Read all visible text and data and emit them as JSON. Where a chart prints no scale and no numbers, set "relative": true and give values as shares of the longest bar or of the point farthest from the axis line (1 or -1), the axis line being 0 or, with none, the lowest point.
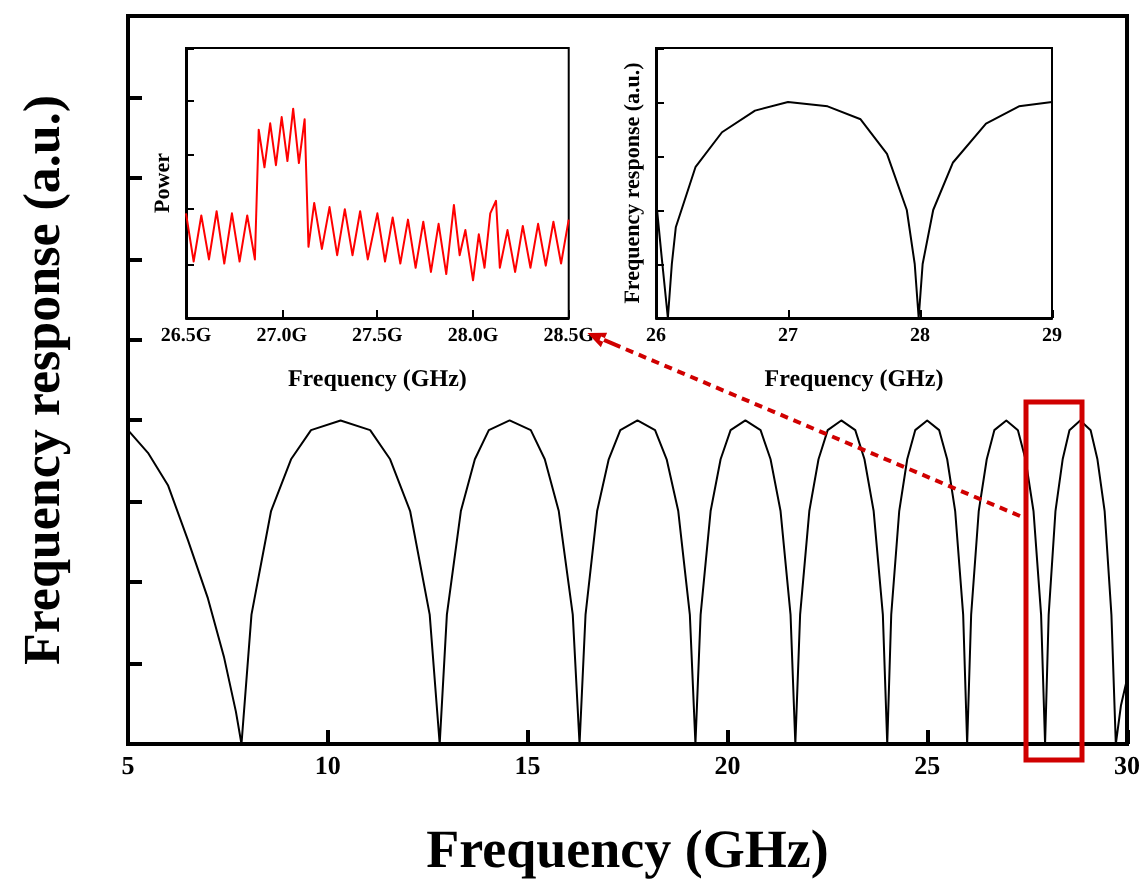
{
  "chart_data": [
    {
      "type": "line",
      "xlabel": "Frequency (GHz)",
      "ylabel": "Frequency response (a.u.)",
      "relative": true,
      "xlim": [
        5,
        30
      ],
      "xticks": [
        5,
        10,
        15,
        20,
        25,
        30
      ],
      "tick_labels": "x",
      "grid": false,
      "marker": "none",
      "line_style": "solid",
      "series": [
        {
          "color": "#000000",
          "x": [
            5,
            5.5,
            6,
            6.5,
            7,
            7.4,
            7.7,
            7.84,
            8.09,
            8.58,
            9.08,
            9.58,
            10.32,
            11.06,
            11.56,
            12.06,
            12.55,
            12.8,
            12.98,
            13.33,
            13.68,
            14.03,
            14.55,
            15.08,
            15.43,
            15.78,
            16.13,
            16.3,
            16.45,
            16.74,
            17.03,
            17.32,
            17.75,
            18.19,
            18.48,
            18.77,
            19.06,
            19.2,
            19.33,
            19.58,
            19.83,
            20.08,
            20.45,
            20.83,
            21.08,
            21.33,
            21.58,
            21.7,
            21.82,
            22.05,
            22.28,
            22.51,
            22.85,
            23.2,
            23.43,
            23.66,
            23.89,
            24.0,
            24.1,
            24.3,
            24.5,
            24.7,
            25,
            25.3,
            25.5,
            25.7,
            25.9,
            26.0,
            26.1,
            26.29,
            26.49,
            26.68,
            26.98,
            27.27,
            27.46,
            27.66,
            27.85,
            27.95,
            28.04,
            28.21,
            28.39,
            28.56,
            28.83,
            29.09,
            29.26,
            29.44,
            29.61,
            29.72,
            29.85,
            30
          ],
          "values": [
            0.97,
            0.9,
            0.8,
            0.63,
            0.45,
            0.27,
            0.1,
            0,
            0.4,
            0.72,
            0.88,
            0.97,
            1,
            0.97,
            0.88,
            0.72,
            0.4,
            0,
            0.4,
            0.72,
            0.88,
            0.97,
            1,
            0.97,
            0.88,
            0.72,
            0.4,
            0,
            0.4,
            0.72,
            0.88,
            0.97,
            1,
            0.97,
            0.88,
            0.72,
            0.4,
            0,
            0.4,
            0.72,
            0.88,
            0.97,
            1,
            0.97,
            0.88,
            0.72,
            0.4,
            0,
            0.4,
            0.72,
            0.88,
            0.97,
            1,
            0.97,
            0.88,
            0.72,
            0.4,
            0,
            0.4,
            0.72,
            0.88,
            0.97,
            1,
            0.97,
            0.88,
            0.72,
            0.4,
            0,
            0.4,
            0.72,
            0.88,
            0.97,
            1,
            0.97,
            0.88,
            0.72,
            0.4,
            0,
            0.4,
            0.72,
            0.88,
            0.97,
            1,
            0.97,
            0.88,
            0.72,
            0.4,
            0,
            0.12,
            0.2
          ]
        }
      ]
    },
    {
      "type": "line",
      "xlabel": "Frequency (GHz)",
      "ylabel": "Power",
      "relative": true,
      "xlim": [
        26.5,
        28.5
      ],
      "xticks": [
        {
          "value": 26.5,
          "label": "26.5G"
        },
        {
          "value": 27.0,
          "label": "27.0G"
        },
        {
          "value": 27.5,
          "label": "27.5G"
        },
        {
          "value": 28.0,
          "label": "28.0G"
        },
        {
          "value": 28.5,
          "label": "28.5G"
        }
      ],
      "tick_labels": "x",
      "grid": false,
      "marker": "none",
      "series": [
        {
          "color": "#ff0000",
          "x": [
            26.5,
            26.54,
            26.58,
            26.62,
            26.66,
            26.7,
            26.74,
            26.78,
            26.82,
            26.86,
            26.88,
            26.91,
            26.94,
            26.97,
            27.0,
            27.03,
            27.06,
            27.09,
            27.12,
            27.14,
            27.17,
            27.21,
            27.25,
            27.29,
            27.33,
            27.37,
            27.41,
            27.45,
            27.5,
            27.54,
            27.58,
            27.62,
            27.66,
            27.7,
            27.74,
            27.78,
            27.82,
            27.86,
            27.9,
            27.93,
            27.96,
            28.0,
            28.03,
            28.06,
            28.09,
            28.12,
            28.14,
            28.18,
            28.22,
            28.26,
            28.3,
            28.34,
            28.38,
            28.42,
            28.46,
            28.5
          ],
          "values": [
            0.5,
            0.27,
            0.49,
            0.28,
            0.51,
            0.26,
            0.5,
            0.27,
            0.49,
            0.28,
            0.9,
            0.72,
            0.93,
            0.73,
            0.96,
            0.75,
            1,
            0.74,
            0.95,
            0.34,
            0.55,
            0.33,
            0.53,
            0.3,
            0.52,
            0.3,
            0.51,
            0.28,
            0.5,
            0.27,
            0.48,
            0.26,
            0.47,
            0.24,
            0.46,
            0.22,
            0.45,
            0.21,
            0.54,
            0.3,
            0.42,
            0.18,
            0.4,
            0.24,
            0.5,
            0.56,
            0.24,
            0.42,
            0.22,
            0.44,
            0.24,
            0.45,
            0.25,
            0.46,
            0.26,
            0.47
          ]
        }
      ]
    },
    {
      "type": "line",
      "xlabel": "Frequency (GHz)",
      "ylabel": "Frequency response (a.u.)",
      "relative": true,
      "xlim": [
        26,
        29
      ],
      "xticks": [
        26,
        27,
        28,
        29
      ],
      "tick_labels": "x",
      "grid": false,
      "marker": "none",
      "series": [
        {
          "color": "#000000",
          "x": [
            26,
            26.04,
            26.09,
            26.12,
            26.15,
            26.3,
            26.5,
            26.75,
            27.0,
            27.3,
            27.55,
            27.75,
            27.9,
            27.96,
            27.99,
            28.02,
            28.1,
            28.25,
            28.5,
            28.75,
            29
          ],
          "values": [
            0.55,
            0.3,
            0,
            0.25,
            0.42,
            0.7,
            0.86,
            0.96,
            1,
            0.98,
            0.92,
            0.76,
            0.5,
            0.25,
            0,
            0.25,
            0.5,
            0.72,
            0.9,
            0.98,
            1
          ]
        }
      ]
    }
  ]
}
